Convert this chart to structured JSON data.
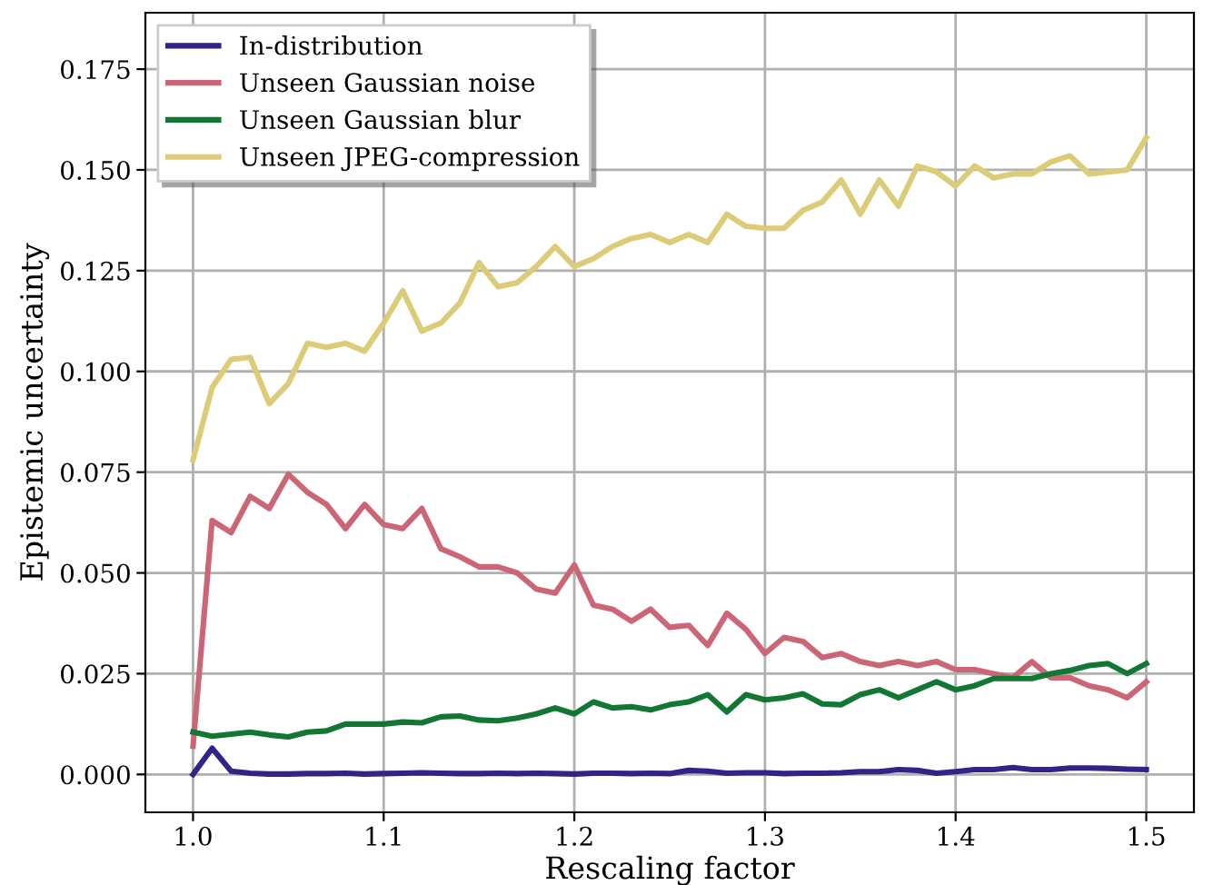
{
  "chart_data": {
    "type": "line",
    "xlabel": "Rescaling factor",
    "ylabel": "Epistemic uncertainty",
    "x": [
      1.0,
      1.01,
      1.02,
      1.03,
      1.04,
      1.05,
      1.06,
      1.07,
      1.08,
      1.09,
      1.1,
      1.11,
      1.12,
      1.13,
      1.14,
      1.15,
      1.16,
      1.17,
      1.18,
      1.19,
      1.2,
      1.21,
      1.22,
      1.23,
      1.24,
      1.25,
      1.26,
      1.27,
      1.28,
      1.29,
      1.3,
      1.31,
      1.32,
      1.33,
      1.34,
      1.35,
      1.36,
      1.37,
      1.38,
      1.39,
      1.4,
      1.41,
      1.42,
      1.43,
      1.44,
      1.45,
      1.46,
      1.47,
      1.48,
      1.49,
      1.5
    ],
    "series": [
      {
        "name": "In-distribution",
        "color": "#332288",
        "values": [
          0.0,
          0.0065,
          0.0008,
          0.0003,
          0.0001,
          0.0001,
          0.0002,
          0.0002,
          0.0003,
          0.0001,
          0.0002,
          0.0003,
          0.0004,
          0.0003,
          0.0002,
          0.0002,
          0.0003,
          0.0002,
          0.0003,
          0.0002,
          0.0001,
          0.0003,
          0.0003,
          0.0002,
          0.0003,
          0.0002,
          0.001,
          0.0008,
          0.0003,
          0.0004,
          0.0004,
          0.0002,
          0.0003,
          0.0003,
          0.0004,
          0.0007,
          0.0007,
          0.0012,
          0.001,
          0.0003,
          0.0007,
          0.0012,
          0.0012,
          0.0017,
          0.0012,
          0.0012,
          0.0016,
          0.0016,
          0.0015,
          0.0013,
          0.0012
        ]
      },
      {
        "name": "Unseen Gaussian noise",
        "color": "#cc6677",
        "values": [
          0.007,
          0.063,
          0.06,
          0.069,
          0.066,
          0.0745,
          0.07,
          0.067,
          0.061,
          0.067,
          0.062,
          0.061,
          0.066,
          0.056,
          0.054,
          0.0515,
          0.0515,
          0.05,
          0.046,
          0.045,
          0.052,
          0.042,
          0.041,
          0.038,
          0.041,
          0.0365,
          0.037,
          0.032,
          0.04,
          0.036,
          0.03,
          0.034,
          0.033,
          0.029,
          0.03,
          0.028,
          0.027,
          0.028,
          0.027,
          0.028,
          0.026,
          0.026,
          0.025,
          0.024,
          0.028,
          0.024,
          0.024,
          0.022,
          0.021,
          0.019,
          0.023
        ]
      },
      {
        "name": "Unseen Gaussian blur",
        "color": "#117733",
        "values": [
          0.0105,
          0.0095,
          0.01,
          0.0105,
          0.0098,
          0.0093,
          0.0105,
          0.0108,
          0.0125,
          0.0125,
          0.0125,
          0.013,
          0.0128,
          0.0143,
          0.0145,
          0.0135,
          0.0133,
          0.014,
          0.015,
          0.0165,
          0.015,
          0.018,
          0.0165,
          0.0168,
          0.016,
          0.0173,
          0.018,
          0.0198,
          0.0155,
          0.0198,
          0.0185,
          0.019,
          0.02,
          0.0175,
          0.0173,
          0.0198,
          0.021,
          0.019,
          0.021,
          0.023,
          0.021,
          0.022,
          0.0238,
          0.0238,
          0.0238,
          0.025,
          0.0258,
          0.027,
          0.0275,
          0.025,
          0.0275
        ]
      },
      {
        "name": "Unseen JPEG-compression",
        "color": "#ddcc77",
        "values": [
          0.078,
          0.096,
          0.103,
          0.1035,
          0.092,
          0.097,
          0.107,
          0.106,
          0.107,
          0.105,
          0.112,
          0.12,
          0.11,
          0.112,
          0.117,
          0.127,
          0.121,
          0.122,
          0.126,
          0.131,
          0.126,
          0.128,
          0.131,
          0.133,
          0.134,
          0.132,
          0.134,
          0.132,
          0.139,
          0.136,
          0.1355,
          0.1355,
          0.14,
          0.142,
          0.1475,
          0.139,
          0.1475,
          0.141,
          0.151,
          0.1495,
          0.146,
          0.151,
          0.148,
          0.149,
          0.149,
          0.152,
          0.1535,
          0.149,
          0.1495,
          0.15,
          0.158
        ]
      }
    ],
    "xlim": [
      0.975,
      1.525
    ],
    "ylim": [
      -0.0094,
      0.189
    ],
    "xticks": [
      {
        "value": 1.0,
        "label": "1.0"
      },
      1.1,
      1.2,
      1.3,
      1.4,
      1.5
    ],
    "yticks": [
      {
        "value": 0,
        "label": "0.000"
      },
      {
        "value": 0.025,
        "label": "0.025"
      },
      {
        "value": 0.05,
        "label": "0.050"
      },
      {
        "value": 0.075,
        "label": "0.075"
      },
      {
        "value": 0.1,
        "label": "0.100"
      },
      {
        "value": 0.125,
        "label": "0.125"
      },
      {
        "value": 0.15,
        "label": "0.150"
      },
      {
        "value": 0.175,
        "label": "0.175"
      }
    ],
    "grid": true,
    "legend": "top left",
    "marker": "none",
    "line_style": "solid"
  }
}
